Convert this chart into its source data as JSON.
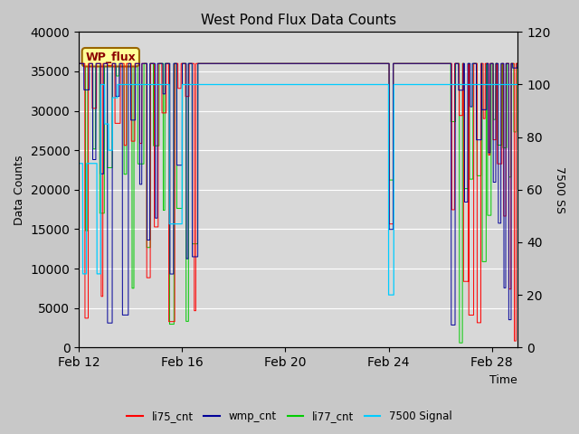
{
  "title": "West Pond Flux Data Counts",
  "xlabel": "Time",
  "ylabel_left": "Data Counts",
  "ylabel_right": "7500 SS",
  "ylim_left": [
    0,
    40000
  ],
  "ylim_right": [
    0,
    120
  ],
  "yticks_left": [
    0,
    5000,
    10000,
    15000,
    20000,
    25000,
    30000,
    35000,
    40000
  ],
  "yticks_right": [
    0,
    20,
    40,
    60,
    80,
    100,
    120
  ],
  "fig_bg_color": "#c8c8c8",
  "plot_bg_color": "#d8d8d8",
  "legend_box_label": "WP_flux",
  "legend_box_facecolor": "#ffff99",
  "legend_box_edgecolor": "#996600",
  "colors": {
    "li75_cnt": "#ff0000",
    "wmp_cnt": "#000099",
    "li77_cnt": "#00cc00",
    "signal": "#00ccff"
  },
  "x_tick_positions": [
    0,
    4,
    8,
    12,
    16
  ],
  "x_tick_labels": [
    "Feb 12",
    "Feb 16",
    "Feb 20",
    "Feb 24",
    "Feb 28"
  ]
}
